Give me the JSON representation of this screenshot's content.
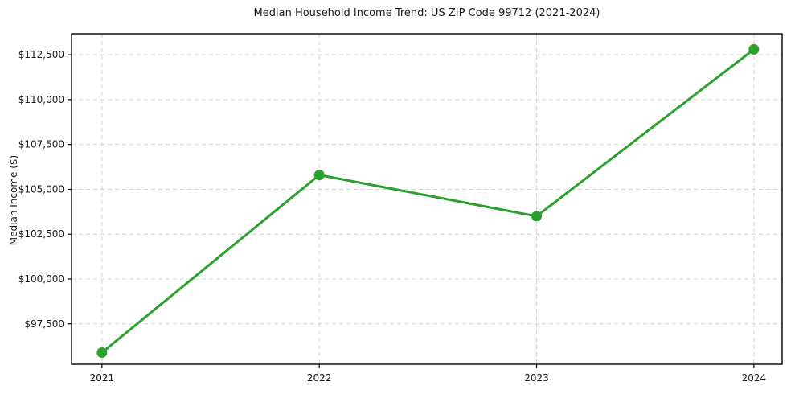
{
  "chart_data": {
    "type": "line",
    "title": "Median Household Income Trend: US ZIP Code 99712 (2021-2024)",
    "xlabel": "",
    "ylabel": "Median Income ($)",
    "x": [
      2021,
      2022,
      2023,
      2024
    ],
    "categories": [
      "2021",
      "2022",
      "2023",
      "2024"
    ],
    "series": [
      {
        "name": "Median Household Income",
        "values": [
          95900,
          105800,
          103500,
          112800
        ]
      }
    ],
    "xtick_labels": [
      "2021",
      "2022",
      "2023",
      "2024"
    ],
    "ytick_values": [
      97500,
      100000,
      102500,
      105000,
      107500,
      110000,
      112500
    ],
    "ytick_labels": [
      "$97,500",
      "$100,000",
      "$102,500",
      "$105,000",
      "$107,500",
      "$110,000",
      "$112,500"
    ],
    "xlim": [
      2020.86,
      2024.13
    ],
    "ylim": [
      95250,
      113670
    ],
    "grid": true,
    "legend": "none",
    "colors": {
      "line": "#2ca02c",
      "marker": "#2ca02c",
      "grid": "#d4d4d4",
      "spine": "#000000",
      "text": "#1a1a1a",
      "background": "#ffffff"
    }
  }
}
